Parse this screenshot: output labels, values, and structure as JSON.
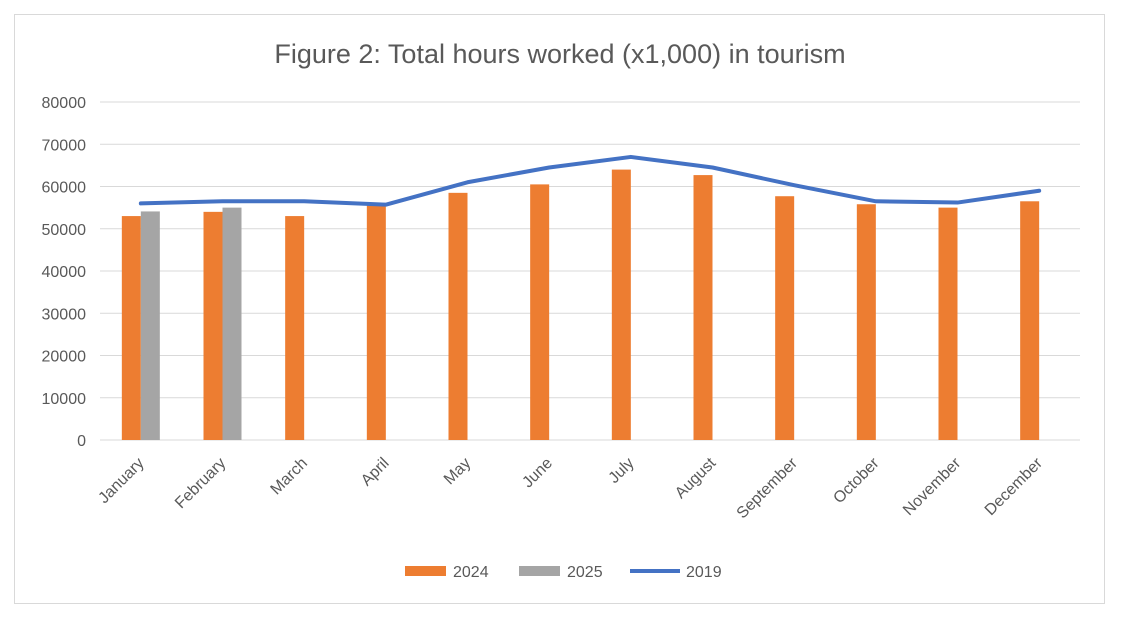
{
  "chart_data": {
    "type": "bar",
    "title": "Figure 2: Total hours worked (x1,000) in tourism",
    "xlabel": "",
    "ylabel": "",
    "categories": [
      "January",
      "February",
      "March",
      "April",
      "May",
      "June",
      "July",
      "August",
      "September",
      "October",
      "November",
      "December"
    ],
    "ylim": [
      0,
      80000
    ],
    "yticks": [
      0,
      10000,
      20000,
      30000,
      40000,
      50000,
      60000,
      70000,
      80000
    ],
    "grid": true,
    "legend_position": "bottom",
    "series": [
      {
        "name": "2024",
        "kind": "bar",
        "color": "#ED7D31",
        "values": [
          53000,
          54000,
          53000,
          55500,
          58500,
          60500,
          64000,
          62700,
          57700,
          55800,
          55000,
          56500
        ]
      },
      {
        "name": "2025",
        "kind": "bar",
        "color": "#A5A5A5",
        "values": [
          54100,
          55000,
          null,
          null,
          null,
          null,
          null,
          null,
          null,
          null,
          null,
          null
        ]
      },
      {
        "name": "2019",
        "kind": "line",
        "color": "#4472C4",
        "values": [
          56000,
          56500,
          56500,
          55700,
          61000,
          64500,
          67000,
          64500,
          60300,
          56500,
          56200,
          59000
        ]
      }
    ]
  }
}
